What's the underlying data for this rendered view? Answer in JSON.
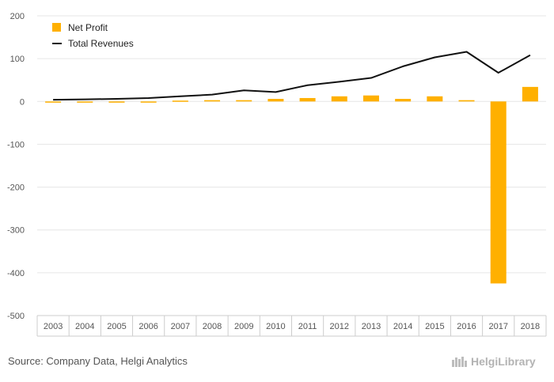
{
  "colors": {
    "bar": "#ffb000",
    "line": "#111111",
    "grid": "#e6e6e6",
    "axis": "#cccccc"
  },
  "chart_data": {
    "type": "bar+line",
    "categories": [
      "2003",
      "2004",
      "2005",
      "2006",
      "2007",
      "2008",
      "2009",
      "2010",
      "2011",
      "2012",
      "2013",
      "2014",
      "2015",
      "2016",
      "2017",
      "2018"
    ],
    "series": [
      {
        "name": "Net Profit",
        "type": "bar",
        "values": [
          -1,
          -1,
          -1,
          -1,
          2,
          3,
          3,
          6,
          8,
          12,
          14,
          6,
          12,
          3,
          -425,
          34
        ]
      },
      {
        "name": "Total Revenues",
        "type": "line",
        "values": [
          4,
          5,
          6,
          8,
          12,
          16,
          26,
          22,
          38,
          46,
          55,
          82,
          103,
          116,
          67,
          108
        ]
      }
    ],
    "ylim": [
      -500,
      200
    ],
    "yticks": [
      200,
      100,
      0,
      -100,
      -200,
      -300,
      -400,
      -500
    ],
    "grid": true,
    "legend_position": "top-left"
  },
  "footer": {
    "source": "Source: Company Data, Helgi Analytics",
    "brand": "HelgiLibrary"
  }
}
